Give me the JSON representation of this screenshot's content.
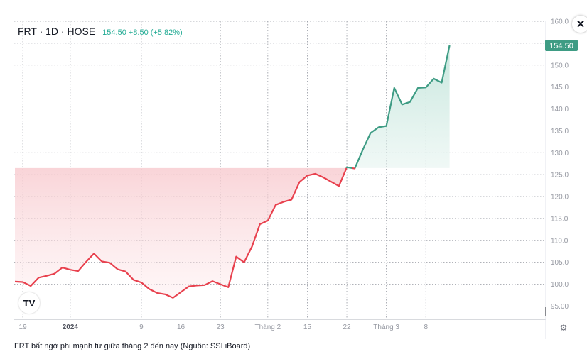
{
  "legend": {
    "symbol": "FRT · 1D · HOSE",
    "quote": "154.50 +8.50 (+5.82%)"
  },
  "price_badge": "154.50",
  "close_icon": "close-icon",
  "logo_text": "TV",
  "settings_icon": "settings-icon",
  "caption": "FRT bất ngờ phi mạnh từ giữa tháng 2 đến nay (Nguồn: SSI iBoard)",
  "colors": {
    "down": "#e8414e",
    "up": "#3e9c84",
    "grid": "#9598a1",
    "axis_text": "#9598a1"
  },
  "chart_data": {
    "type": "line",
    "baseline": 126.5,
    "ylim": [
      92,
      160
    ],
    "yticks": [
      "95.00",
      "100.0",
      "105.0",
      "110.0",
      "115.0",
      "120.0",
      "125.0",
      "130.0",
      "135.0",
      "140.0",
      "145.0",
      "150.0",
      "155.0",
      "160.0"
    ],
    "ytick_values": [
      95,
      100,
      105,
      110,
      115,
      120,
      125,
      130,
      135,
      140,
      145,
      150,
      155,
      160
    ],
    "xticks": [
      {
        "label": "19",
        "i": 1,
        "bold": false
      },
      {
        "label": "2024",
        "i": 7,
        "bold": true
      },
      {
        "label": "9",
        "i": 16,
        "bold": false
      },
      {
        "label": "16",
        "i": 21,
        "bold": false
      },
      {
        "label": "23",
        "i": 26,
        "bold": false
      },
      {
        "label": "Tháng 2",
        "i": 32,
        "bold": false
      },
      {
        "label": "15",
        "i": 37,
        "bold": false
      },
      {
        "label": "22",
        "i": 42,
        "bold": false
      },
      {
        "label": "Tháng 3",
        "i": 47,
        "bold": false
      },
      {
        "label": "8",
        "i": 52,
        "bold": false
      }
    ],
    "values": [
      100.6,
      100.5,
      99.6,
      101.5,
      101.9,
      102.4,
      103.8,
      103.3,
      103.0,
      105.1,
      107.0,
      105.2,
      104.9,
      103.4,
      102.9,
      101.0,
      100.4,
      98.9,
      98.0,
      97.7,
      96.9,
      98.2,
      99.5,
      99.7,
      99.8,
      100.7,
      100.0,
      99.3,
      106.3,
      105.0,
      108.6,
      113.7,
      114.5,
      118.1,
      118.8,
      119.3,
      123.3,
      124.8,
      125.2,
      124.4,
      123.4,
      122.4,
      126.7,
      126.4,
      130.6,
      134.5,
      135.8,
      136.1,
      144.8,
      141.0,
      141.6,
      144.8,
      144.9,
      146.9,
      146.0,
      154.5
    ]
  }
}
